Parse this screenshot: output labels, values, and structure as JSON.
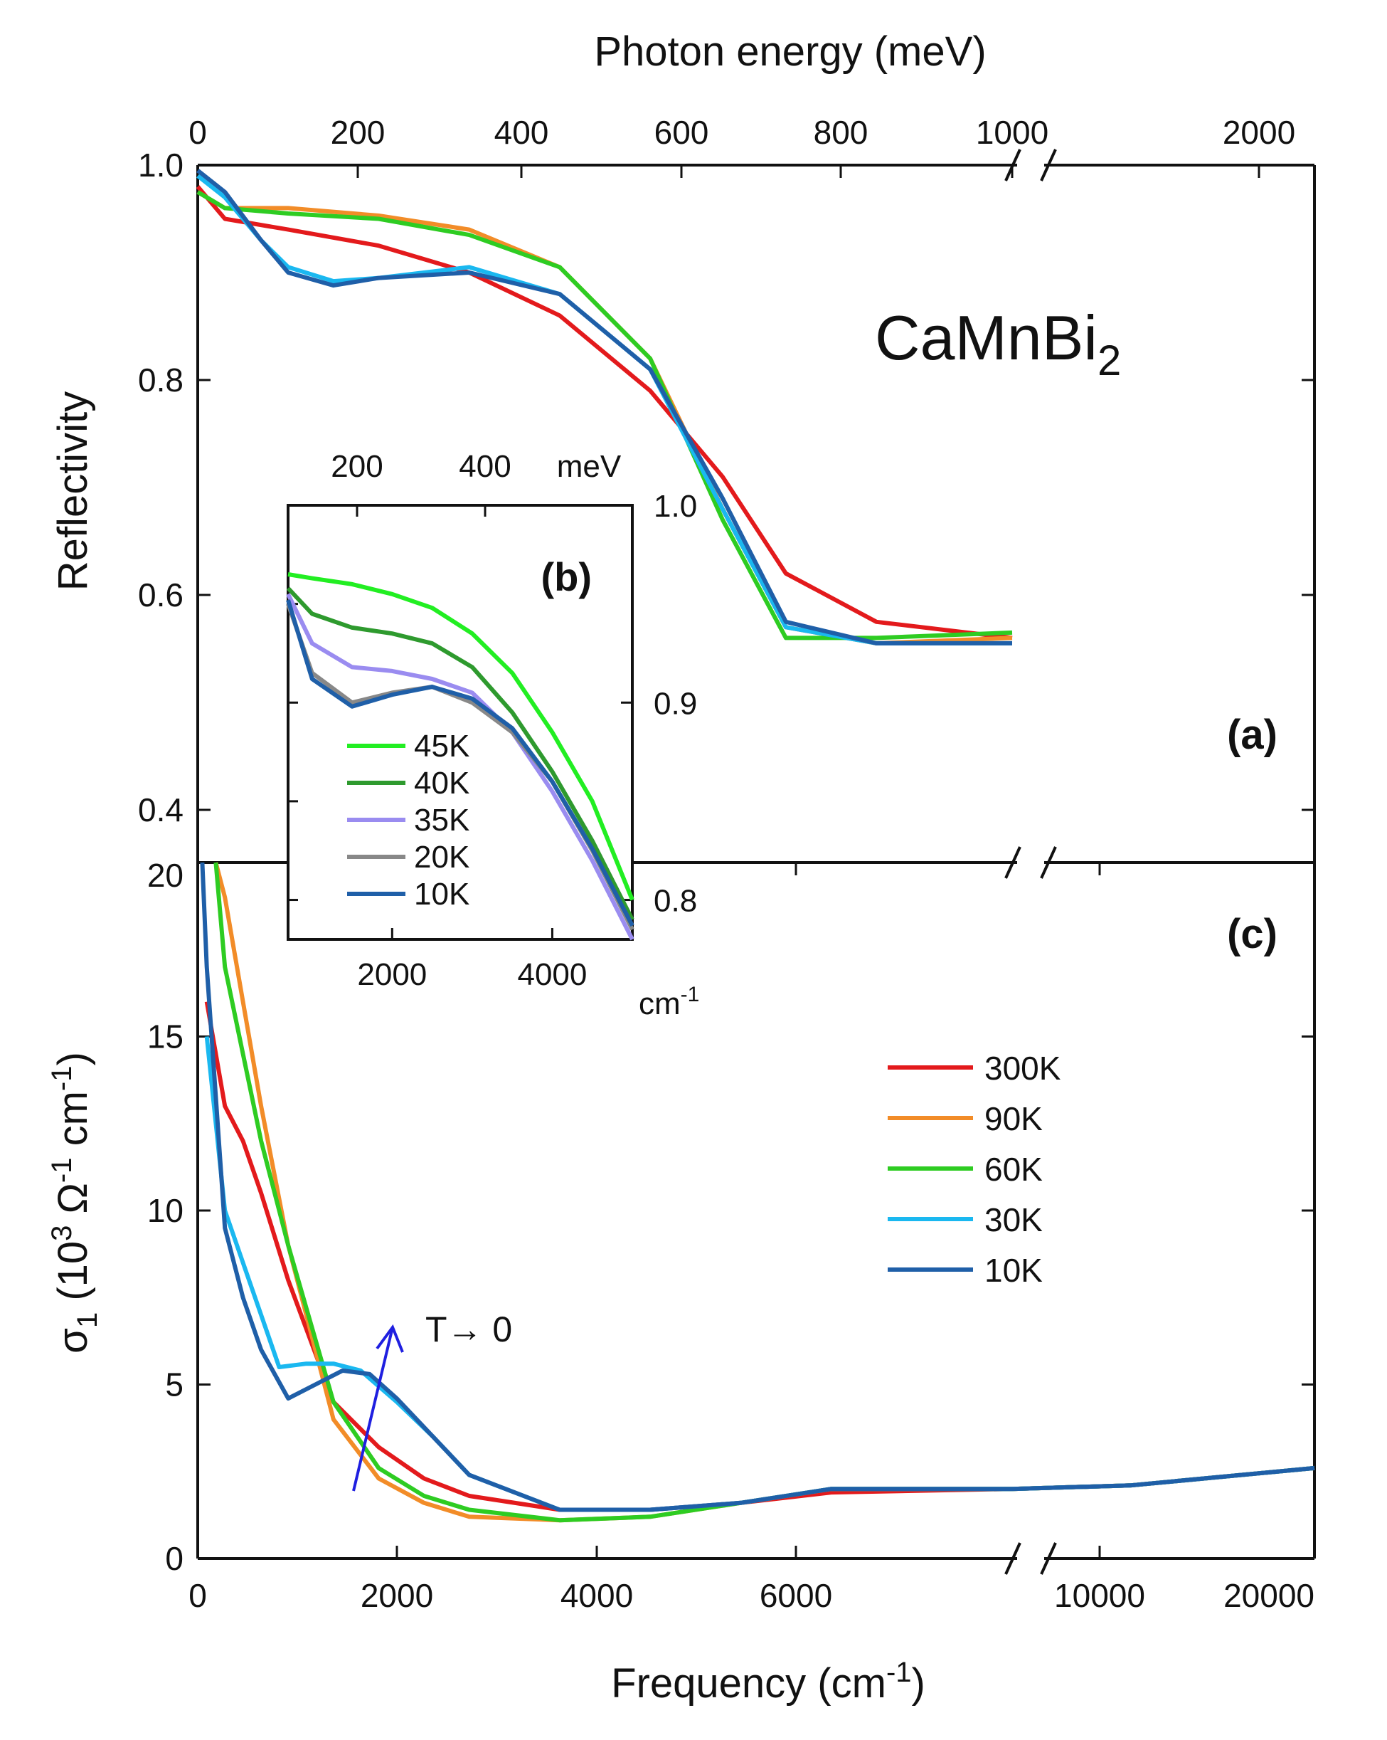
{
  "chart_data": [
    {
      "panel": "(a)",
      "type": "line",
      "title": "CaMnBi2",
      "title_main": "CaMnBi",
      "title_sub": "2",
      "ylabel": "Reflectivity",
      "top_axis_label": "Photon energy (meV)",
      "top_ticks": [
        "0",
        "200",
        "400",
        "600",
        "800",
        "1000",
        "2000"
      ],
      "yticks": [
        "0.4",
        "0.6",
        "0.8",
        "1.0"
      ],
      "ylim": [
        0.36,
        1.0
      ],
      "series": [
        {
          "name": "300K",
          "color": "#e31a1c",
          "x": [
            0,
            300,
            1000,
            2000,
            3000,
            4000,
            5000,
            5800,
            6500,
            7500,
            9000
          ],
          "y": [
            0.98,
            0.95,
            0.94,
            0.925,
            0.9,
            0.86,
            0.79,
            0.71,
            0.62,
            0.575,
            0.56
          ]
        },
        {
          "name": "90K",
          "color": "#f28c28",
          "x": [
            0,
            300,
            1000,
            2000,
            3000,
            4000,
            5000,
            5800,
            6500,
            7500,
            9000
          ],
          "y": [
            0.975,
            0.96,
            0.96,
            0.953,
            0.94,
            0.905,
            0.82,
            0.68,
            0.57,
            0.555,
            0.56
          ]
        },
        {
          "name": "60K",
          "color": "#2ecc22",
          "x": [
            0,
            300,
            1000,
            2000,
            3000,
            4000,
            5000,
            5800,
            6500,
            7500,
            9000
          ],
          "y": [
            0.975,
            0.96,
            0.955,
            0.95,
            0.935,
            0.905,
            0.82,
            0.67,
            0.56,
            0.56,
            0.565
          ]
        },
        {
          "name": "30K",
          "color": "#1ab8f0",
          "x": [
            0,
            300,
            700,
            1000,
            1500,
            2000,
            3000,
            4000,
            5000,
            5800,
            6500,
            7500,
            9000
          ],
          "y": [
            0.99,
            0.97,
            0.93,
            0.905,
            0.892,
            0.895,
            0.905,
            0.88,
            0.81,
            0.68,
            0.57,
            0.555,
            0.555
          ]
        },
        {
          "name": "10K",
          "color": "#1f5fa8",
          "x": [
            0,
            300,
            700,
            1000,
            1500,
            2000,
            3000,
            4000,
            5000,
            5800,
            6500,
            7500,
            9000
          ],
          "y": [
            0.995,
            0.975,
            0.93,
            0.9,
            0.888,
            0.895,
            0.9,
            0.88,
            0.81,
            0.69,
            0.575,
            0.555,
            0.555
          ]
        }
      ]
    },
    {
      "panel": "(b)",
      "type": "line",
      "xlabel": "cm-1",
      "xlabel_main": "cm",
      "xlabel_sup": "-1",
      "top_axis_label": "meV",
      "top_ticks": [
        "200",
        "400",
        "meV"
      ],
      "xticks": [
        "2000",
        "4000"
      ],
      "yticks": [
        "0.8",
        "0.9",
        "1.0"
      ],
      "xlim": [
        700,
        5000
      ],
      "ylim": [
        0.78,
        1.0
      ],
      "series": [
        {
          "name": "45K",
          "color": "#22ee22",
          "x": [
            700,
            1000,
            1500,
            2000,
            2500,
            3000,
            3500,
            4000,
            4500,
            5000
          ],
          "y": [
            0.965,
            0.963,
            0.96,
            0.955,
            0.948,
            0.935,
            0.915,
            0.885,
            0.85,
            0.8
          ]
        },
        {
          "name": "40K",
          "color": "#2e9a2e",
          "x": [
            700,
            1000,
            1500,
            2000,
            2500,
            3000,
            3500,
            4000,
            4500,
            5000
          ],
          "y": [
            0.958,
            0.945,
            0.938,
            0.935,
            0.93,
            0.918,
            0.895,
            0.865,
            0.83,
            0.79
          ]
        },
        {
          "name": "35K",
          "color": "#9a8cf0",
          "x": [
            700,
            1000,
            1500,
            2000,
            2500,
            3000,
            3500,
            4000,
            4500,
            5000
          ],
          "y": [
            0.955,
            0.93,
            0.918,
            0.916,
            0.912,
            0.905,
            0.885,
            0.855,
            0.82,
            0.775
          ]
        },
        {
          "name": "20K",
          "color": "#888888",
          "x": [
            700,
            1000,
            1500,
            2000,
            2500,
            3000,
            3500,
            4000,
            4500,
            5000
          ],
          "y": [
            0.95,
            0.915,
            0.9,
            0.905,
            0.908,
            0.9,
            0.885,
            0.86,
            0.825,
            0.785
          ]
        },
        {
          "name": "10K",
          "color": "#1f5fa8",
          "x": [
            700,
            1000,
            1500,
            2000,
            2500,
            3000,
            3500,
            4000,
            4500,
            5000
          ],
          "y": [
            0.952,
            0.912,
            0.898,
            0.904,
            0.908,
            0.902,
            0.887,
            0.86,
            0.826,
            0.787
          ]
        }
      ],
      "panel_label": "(b)"
    },
    {
      "panel": "(c)",
      "type": "line",
      "xlabel": "Frequency (cm-1)",
      "xlabel_main": "Frequency (cm",
      "xlabel_sup": "-1",
      "xlabel_end": ")",
      "ylabel_parts": [
        "σ",
        "1",
        " (10",
        "3",
        " Ω",
        "-1",
        " cm",
        "-1",
        ")"
      ],
      "xticks": [
        "0",
        "2000",
        "4000",
        "6000",
        "10000",
        "20000"
      ],
      "yticks": [
        "0",
        "5",
        "10",
        "15",
        "20"
      ],
      "ylim": [
        0,
        20
      ],
      "annotation": "T→ 0",
      "series": [
        {
          "name": "300K",
          "color": "#e31a1c",
          "x": [
            100,
            300,
            500,
            700,
            1000,
            1500,
            2000,
            2500,
            3000,
            4000,
            5000,
            6000,
            7000,
            9000,
            12000,
            20000
          ],
          "y": [
            16,
            13,
            12,
            10.5,
            8,
            4.5,
            3.2,
            2.3,
            1.8,
            1.4,
            1.4,
            1.6,
            1.9,
            2.0,
            2.1,
            2.6
          ]
        },
        {
          "name": "90K",
          "color": "#f28c28",
          "x": [
            200,
            300,
            500,
            700,
            1000,
            1500,
            2000,
            2500,
            3000,
            4000,
            5000,
            6000,
            7000,
            9000,
            12000,
            20000
          ],
          "y": [
            20,
            19,
            16,
            13,
            9,
            4,
            2.3,
            1.6,
            1.2,
            1.1,
            1.2,
            1.6,
            2.0,
            2.0,
            2.1,
            2.6
          ]
        },
        {
          "name": "60K",
          "color": "#2ecc22",
          "x": [
            200,
            300,
            500,
            700,
            1000,
            1500,
            2000,
            2500,
            3000,
            4000,
            5000,
            6000,
            7000,
            9000,
            12000,
            20000
          ],
          "y": [
            20,
            17,
            14.5,
            12,
            9,
            4.5,
            2.6,
            1.8,
            1.4,
            1.1,
            1.2,
            1.6,
            2.0,
            2.0,
            2.1,
            2.6
          ]
        },
        {
          "name": "30K",
          "color": "#1ab8f0",
          "x": [
            100,
            300,
            500,
            700,
            900,
            1200,
            1500,
            1800,
            2200,
            2600,
            3000,
            4000,
            5000,
            6000,
            7000,
            9000,
            12000,
            20000
          ],
          "y": [
            15,
            10,
            8.5,
            7,
            5.5,
            5.6,
            5.6,
            5.4,
            4.5,
            3.5,
            2.4,
            1.4,
            1.4,
            1.6,
            2.0,
            2.0,
            2.1,
            2.6
          ]
        },
        {
          "name": "10K",
          "color": "#1f5fa8",
          "x": [
            50,
            100,
            300,
            500,
            700,
            1000,
            1300,
            1600,
            1900,
            2200,
            2600,
            3000,
            4000,
            5000,
            6000,
            7000,
            9000,
            12000,
            20000
          ],
          "y": [
            20,
            17,
            9.5,
            7.5,
            6,
            4.6,
            5.0,
            5.4,
            5.3,
            4.6,
            3.5,
            2.4,
            1.4,
            1.4,
            1.6,
            2.0,
            2.0,
            2.1,
            2.6
          ]
        }
      ],
      "panel_label": "(c)"
    }
  ],
  "panel_labels": {
    "a": "(a)",
    "b": "(b)",
    "c": "(c)"
  },
  "legend_main": [
    "300K",
    "90K",
    "60K",
    "30K",
    "10K"
  ],
  "legend_inset": [
    "45K",
    "40K",
    "35K",
    "20K",
    "10K"
  ]
}
